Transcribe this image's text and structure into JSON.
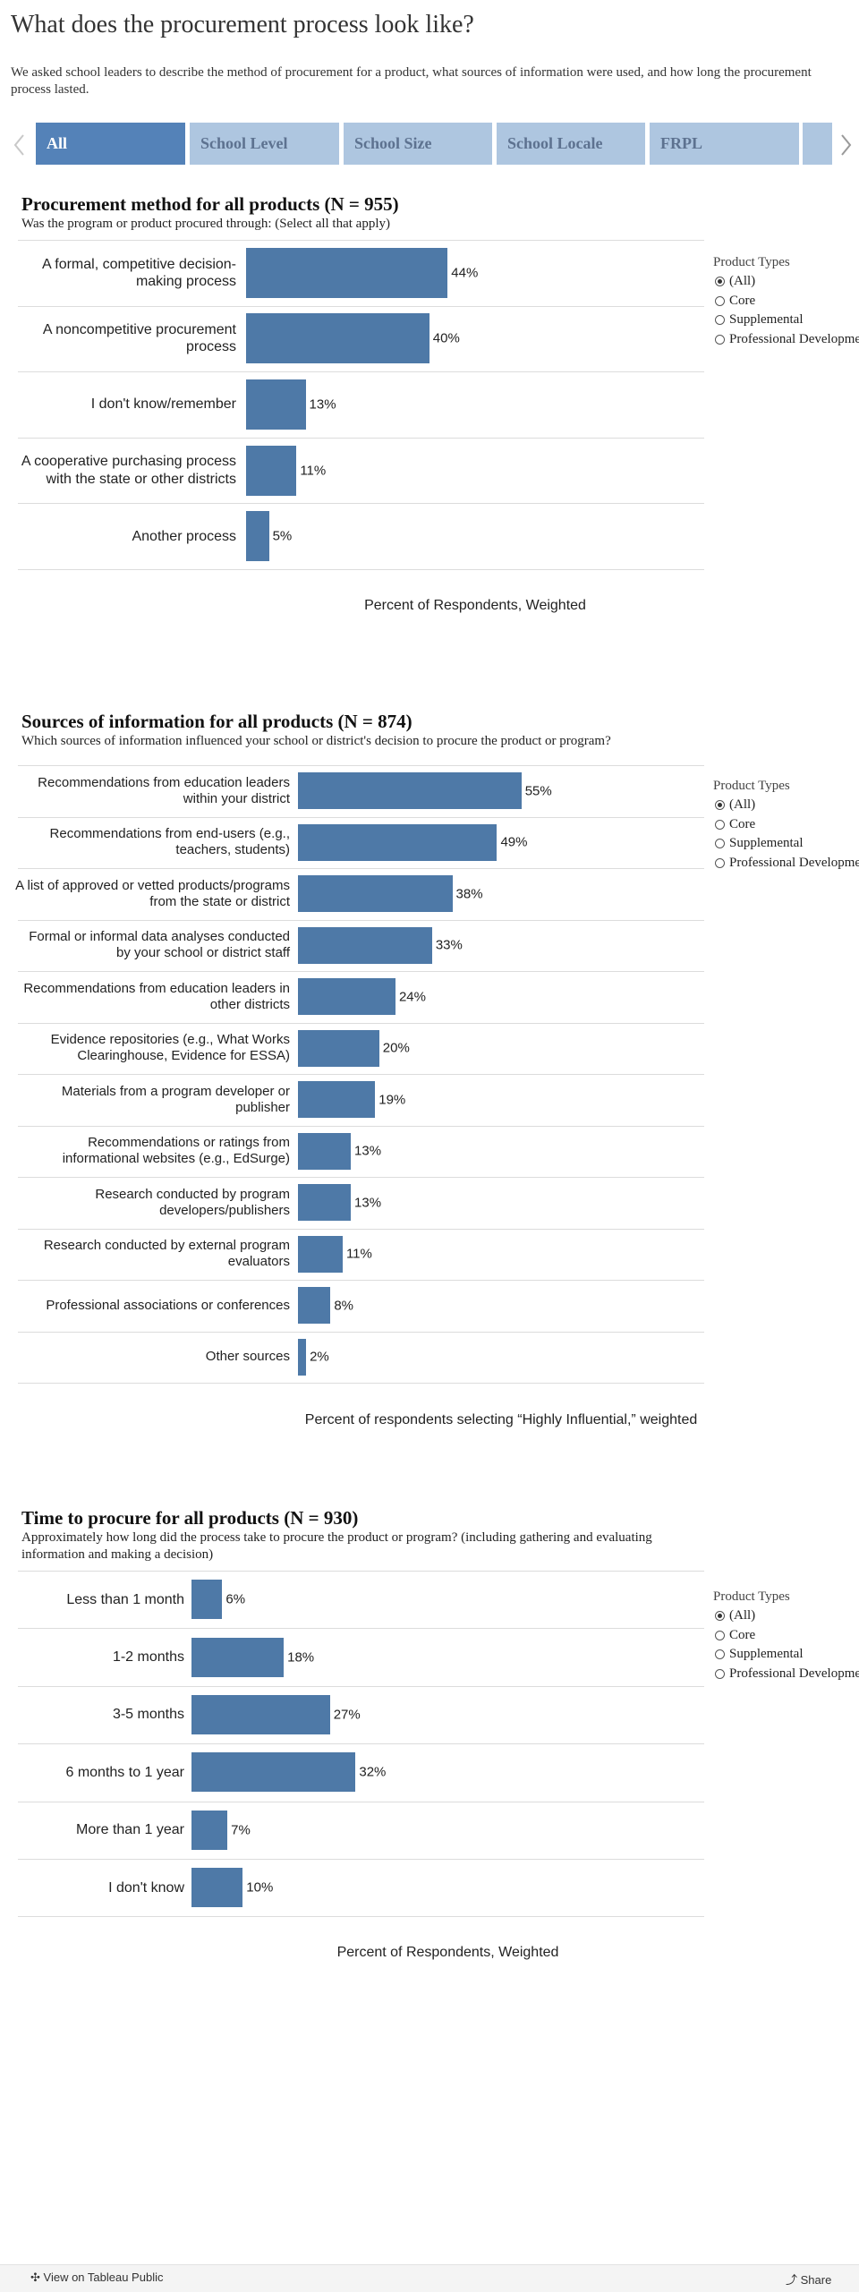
{
  "header": {
    "title": "What does the procurement process look like?",
    "description": "We asked school leaders to describe the method of procurement for a product, what sources of information were used, and how long the procurement process lasted."
  },
  "tabs": [
    "All",
    "School Level",
    "School Size",
    "School Locale",
    "FRPL"
  ],
  "chart_data": [
    {
      "type": "bar",
      "title": "Procurement method for all products (N = 955)",
      "subtitle": "Was the program or product procured through: (Select all that apply)",
      "categories": [
        "A formal, competitive decision-making process",
        "A noncompetitive procurement process",
        "I don't know/remember",
        "A cooperative purchasing process with the state or other districts",
        "Another process"
      ],
      "values": [
        44,
        40,
        13,
        11,
        5
      ],
      "value_labels": [
        "44%",
        "40%",
        "13%",
        "11%",
        "5%"
      ],
      "color": "#4e79a7",
      "xlim": [
        0,
        100
      ],
      "x_label": "Percent of Respondents, Weighted"
    },
    {
      "type": "bar",
      "title": "Sources of information for all products (N = 874)",
      "subtitle": "Which sources of information influenced your school or district's decision to procure the product or program?",
      "categories": [
        "Recommendations from education leaders within your district",
        "Recommendations from end-users (e.g., teachers, students)",
        "A list of approved or vetted products/programs from the state or district",
        "Formal or informal data analyses conducted by your school or district staff",
        "Recommendations from education leaders in other districts",
        "Evidence repositories (e.g., What Works Clearinghouse, Evidence for ESSA)",
        "Materials from a program developer or publisher",
        "Recommendations or ratings from informational websites (e.g., EdSurge)",
        "Research conducted by program developers/publishers",
        "Research conducted by external program evaluators",
        "Professional associations or conferences",
        "Other sources"
      ],
      "values": [
        55,
        49,
        38,
        33,
        24,
        20,
        19,
        13,
        13,
        11,
        8,
        2
      ],
      "value_labels": [
        "55%",
        "49%",
        "38%",
        "33%",
        "24%",
        "20%",
        "19%",
        "13%",
        "13%",
        "11%",
        "8%",
        "2%"
      ],
      "color": "#4e79a7",
      "xlim": [
        0,
        100
      ],
      "x_label": "Percent of respondents selecting “Highly Influential,” weighted"
    },
    {
      "type": "bar",
      "title": "Time to procure for all products (N = 930)",
      "subtitle": "Approximately how long did the process take to procure the product or program? (including gathering and evaluating information and making a decision)",
      "categories": [
        "Less than 1 month",
        "1-2 months",
        "3-5 months",
        "6 months to 1 year",
        "More than 1 year",
        "I don't know"
      ],
      "values": [
        6,
        18,
        27,
        32,
        7,
        10
      ],
      "value_labels": [
        "6%",
        "18%",
        "27%",
        "32%",
        "7%",
        "10%"
      ],
      "color": "#4e79a7",
      "xlim": [
        0,
        100
      ],
      "x_label": "Percent of Respondents, Weighted"
    }
  ],
  "filters": [
    {
      "title": "Product Types",
      "options": [
        "(All)",
        "Core",
        "Supplemental",
        "Professional Development"
      ],
      "selected": 0
    },
    {
      "title": "Product Types",
      "options": [
        "(All)",
        "Core",
        "Supplemental",
        "Professional Development"
      ],
      "selected": 0
    },
    {
      "title": "Product Types",
      "options": [
        "(All)",
        "Core",
        "Supplemental",
        "Professional Development"
      ],
      "selected": 0
    }
  ],
  "footer": {
    "link": "View on Tableau Public",
    "share": "Share"
  }
}
